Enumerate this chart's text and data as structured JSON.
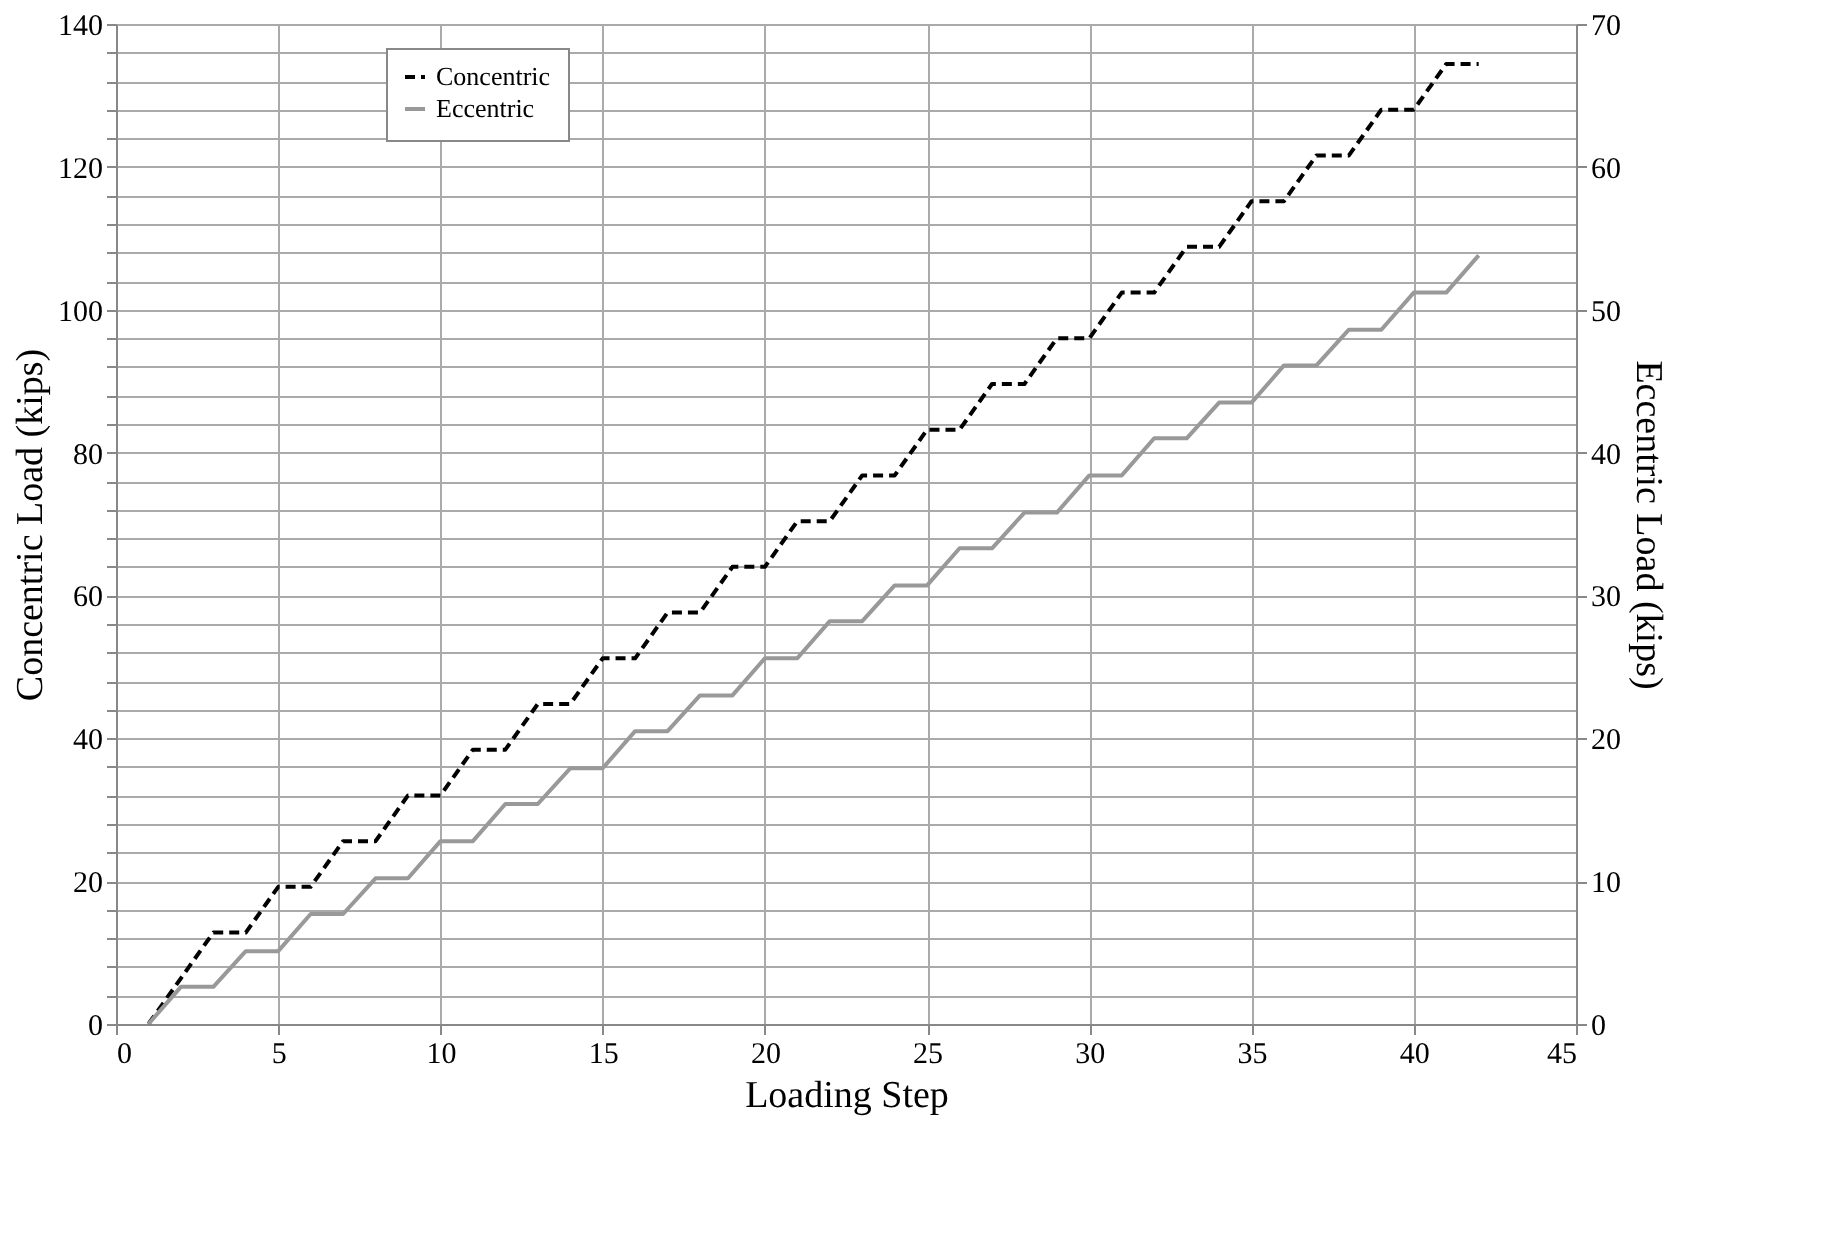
{
  "chart_data": {
    "type": "line",
    "xlabel": "Loading Step",
    "ylabel": "Concentric Load (kips)",
    "y2label": "Eccentric Load (kips)",
    "x": [
      1,
      2,
      3,
      4,
      5,
      6,
      7,
      8,
      9,
      10,
      11,
      12,
      13,
      14,
      15,
      16,
      17,
      18,
      19,
      20,
      21,
      22,
      23,
      24,
      25,
      26,
      27,
      28,
      29,
      30,
      31,
      32,
      33,
      34,
      35,
      36,
      37,
      38,
      39,
      40,
      41,
      42
    ],
    "series": [
      {
        "name": "Concentric",
        "color": "#000000",
        "line_style": "dashed",
        "values": [
          0,
          6.4,
          12.8,
          12.8,
          19.2,
          19.2,
          25.6,
          25.6,
          32,
          32,
          38.4,
          38.4,
          44.8,
          44.8,
          51.2,
          51.2,
          57.6,
          57.6,
          64,
          64,
          70.4,
          70.4,
          76.8,
          76.8,
          83.2,
          83.2,
          89.6,
          89.6,
          96,
          96,
          102.4,
          102.4,
          108.8,
          108.8,
          115.2,
          115.2,
          121.6,
          121.6,
          128,
          128,
          134.4,
          134.4
        ]
      },
      {
        "name": "Eccentric",
        "color": "#999999",
        "line_style": "solid",
        "axis": "y2",
        "values": [
          0,
          2.6,
          2.6,
          5.1,
          5.1,
          7.7,
          7.7,
          10.2,
          10.2,
          12.8,
          12.8,
          15.4,
          15.4,
          17.9,
          17.9,
          20.5,
          20.5,
          23,
          23,
          25.6,
          25.6,
          28.2,
          28.2,
          30.7,
          30.7,
          33.3,
          33.3,
          35.8,
          35.8,
          38.4,
          38.4,
          41,
          41,
          43.5,
          43.5,
          46.1,
          46.1,
          48.6,
          48.6,
          51.2,
          51.2,
          53.8
        ]
      }
    ],
    "xlim": [
      0,
      45
    ],
    "xticks": [
      0,
      5,
      10,
      15,
      20,
      25,
      30,
      35,
      40,
      45
    ],
    "ylim": [
      0,
      140
    ],
    "yticks": [
      0,
      {
        "value": 4,
        "label": null
      },
      {
        "value": 8,
        "label": null
      },
      {
        "value": 12,
        "label": null
      },
      {
        "value": 16,
        "label": null
      },
      20,
      {
        "value": 24,
        "label": null
      },
      {
        "value": 28,
        "label": null
      },
      {
        "value": 32,
        "label": null
      },
      {
        "value": 36,
        "label": null
      },
      40,
      {
        "value": 44,
        "label": null
      },
      {
        "value": 48,
        "label": null
      },
      {
        "value": 52,
        "label": null
      },
      {
        "value": 56,
        "label": null
      },
      60,
      {
        "value": 64,
        "label": null
      },
      {
        "value": 68,
        "label": null
      },
      {
        "value": 72,
        "label": null
      },
      {
        "value": 76,
        "label": null
      },
      80,
      {
        "value": 84,
        "label": null
      },
      {
        "value": 88,
        "label": null
      },
      {
        "value": 92,
        "label": null
      },
      {
        "value": 96,
        "label": null
      },
      100,
      {
        "value": 104,
        "label": null
      },
      {
        "value": 108,
        "label": null
      },
      {
        "value": 112,
        "label": null
      },
      {
        "value": 116,
        "label": null
      },
      120,
      {
        "value": 124,
        "label": null
      },
      {
        "value": 128,
        "label": null
      },
      {
        "value": 132,
        "label": null
      },
      {
        "value": 136,
        "label": null
      },
      140
    ],
    "y2lim": [
      0,
      70
    ],
    "y2ticks": [
      0,
      10,
      20,
      30,
      40,
      50,
      60,
      70
    ],
    "grid": true,
    "legend": "top left",
    "marker": "none"
  }
}
